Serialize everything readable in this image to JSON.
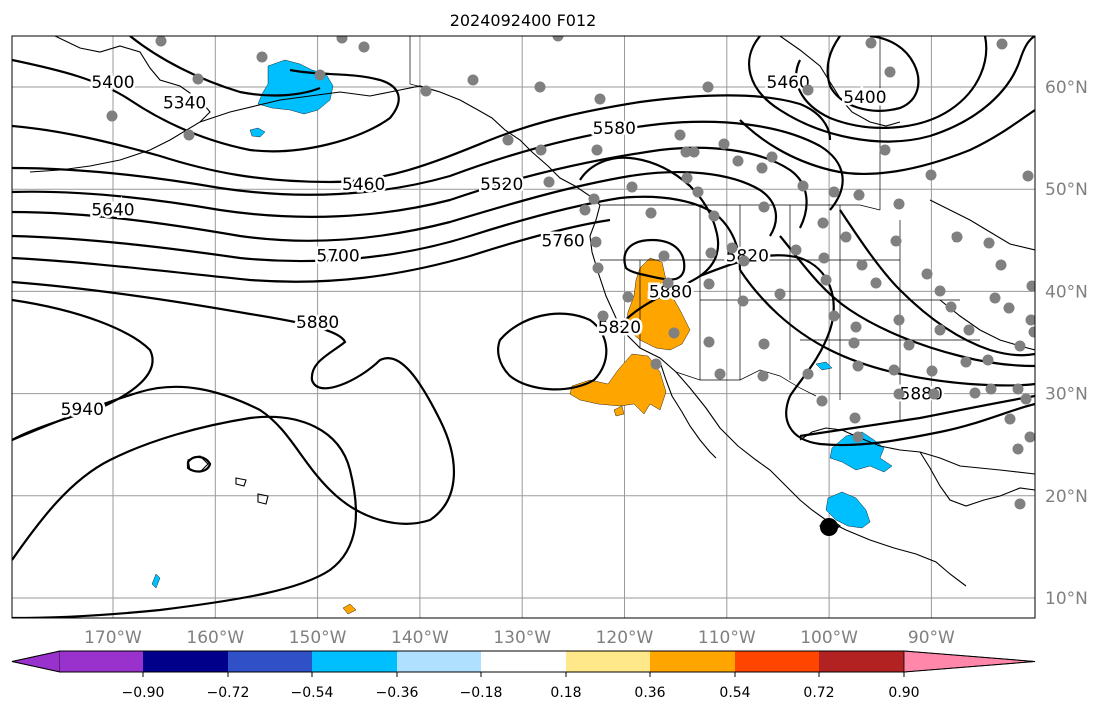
{
  "title": "2024092400 F012",
  "lat_labels": [
    {
      "text": "60°N",
      "lat": 60
    },
    {
      "text": "50°N",
      "lat": 50
    },
    {
      "text": "40°N",
      "lat": 40
    },
    {
      "text": "30°N",
      "lat": 30
    },
    {
      "text": "20°N",
      "lat": 20
    },
    {
      "text": "10°N",
      "lat": 10
    }
  ],
  "lon_labels": [
    {
      "text": "170°W",
      "lon": -170
    },
    {
      "text": "160°W",
      "lon": -160
    },
    {
      "text": "150°W",
      "lon": -150
    },
    {
      "text": "140°W",
      "lon": -140
    },
    {
      "text": "130°W",
      "lon": -130
    },
    {
      "text": "120°W",
      "lon": -120
    },
    {
      "text": "110°W",
      "lon": -110
    },
    {
      "text": "100°W",
      "lon": -100
    },
    {
      "text": "90°W",
      "lon": -90
    }
  ],
  "contour_labels": [
    {
      "text": "5400",
      "lon": -170,
      "lat": 60.5
    },
    {
      "text": "5340",
      "lon": -163,
      "lat": 58.5
    },
    {
      "text": "5460",
      "lon": -145.5,
      "lat": 50.5
    },
    {
      "text": "5640",
      "lon": -170,
      "lat": 48
    },
    {
      "text": "5700",
      "lon": -148,
      "lat": 43.5
    },
    {
      "text": "5880",
      "lon": -150,
      "lat": 37
    },
    {
      "text": "5940",
      "lon": -173,
      "lat": 28.5
    },
    {
      "text": "5520",
      "lon": -132,
      "lat": 50.5
    },
    {
      "text": "5580",
      "lon": -121,
      "lat": 56
    },
    {
      "text": "5760",
      "lon": -126,
      "lat": 45
    },
    {
      "text": "5460",
      "lon": -104,
      "lat": 60.5
    },
    {
      "text": "5400",
      "lon": -96.5,
      "lat": 59
    },
    {
      "text": "5820",
      "lon": -120.5,
      "lat": 36.5
    },
    {
      "text": "5880",
      "lon": -115.5,
      "lat": 40
    },
    {
      "text": "5820",
      "lon": -108,
      "lat": 43.5
    },
    {
      "text": "5880",
      "lon": -91,
      "lat": 30
    }
  ],
  "colorbar": {
    "ticks": [
      "−0.90",
      "−0.72",
      "−0.54",
      "−0.36",
      "−0.18",
      "0.18",
      "0.36",
      "0.54",
      "0.72",
      "0.90"
    ],
    "under_color": "#9932cc",
    "over_color": "#ff88aa",
    "colors": [
      "#00008b",
      "#3050c8",
      "#00bfff",
      "#b0e0ff",
      "#ffffff",
      "#ffe88a",
      "#ffa500",
      "#ff4500",
      "#b22222"
    ]
  },
  "fill_colors": {
    "negative": "#00bfff",
    "positive": "#ffa500"
  }
}
